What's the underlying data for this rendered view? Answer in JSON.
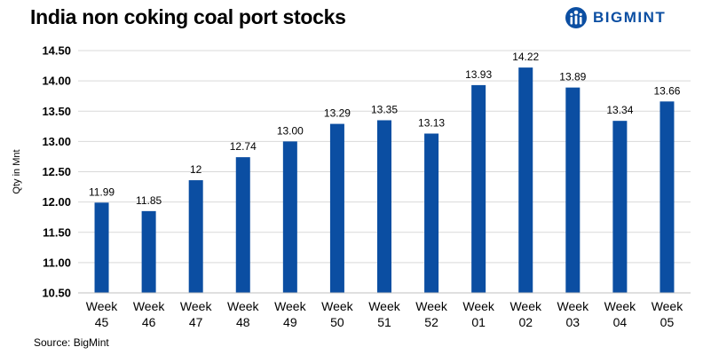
{
  "header": {
    "title": "India non coking coal port stocks",
    "brand": "BIGMINT"
  },
  "footer": {
    "source": "Source: BigMint"
  },
  "colors": {
    "bar": "#0b4ea2",
    "brand": "#0b4ea2",
    "grid": "#d9d9d9"
  },
  "chart_data": {
    "type": "bar",
    "title": "India non coking coal port stocks",
    "xlabel": "",
    "ylabel": "Qty in Mnt",
    "categories": [
      [
        "Week",
        "45"
      ],
      [
        "Week",
        "46"
      ],
      [
        "Week",
        "47"
      ],
      [
        "Week",
        "48"
      ],
      [
        "Week",
        "49"
      ],
      [
        "Week",
        "50"
      ],
      [
        "Week",
        "51"
      ],
      [
        "Week",
        "52"
      ],
      [
        "Week",
        "01"
      ],
      [
        "Week",
        "02"
      ],
      [
        "Week",
        "03"
      ],
      [
        "Week",
        "04"
      ],
      [
        "Week",
        "05"
      ]
    ],
    "values": [
      11.99,
      11.85,
      12.36,
      12.74,
      13.0,
      13.29,
      13.35,
      13.13,
      13.93,
      14.22,
      13.89,
      13.34,
      13.66
    ],
    "data_labels": [
      "11.99",
      "11.85",
      "12",
      "12.74",
      "13.00",
      "13.29",
      "13.35",
      "13.13",
      "13.93",
      "14.22",
      "13.89",
      "13.34",
      "13.66"
    ],
    "yticks": [
      "10.50",
      "11.00",
      "11.50",
      "12.00",
      "12.50",
      "13.00",
      "13.50",
      "14.00",
      "14.50"
    ],
    "ylim": [
      10.5,
      14.5
    ],
    "grid": true,
    "legend": "none"
  }
}
